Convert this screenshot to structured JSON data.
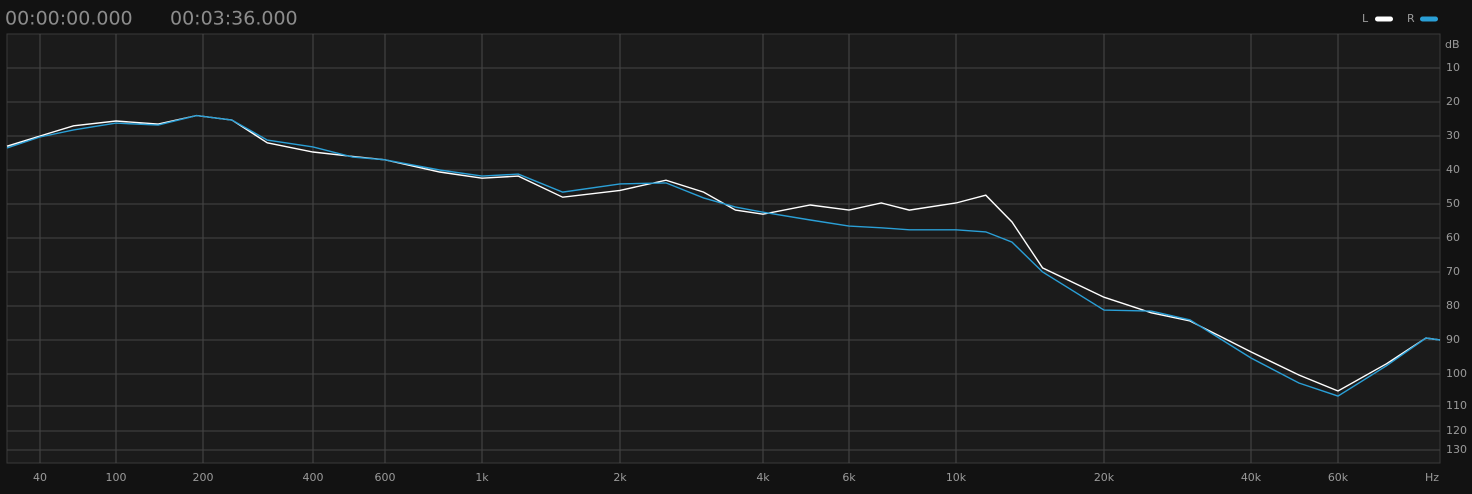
{
  "header": {
    "start": "00:00:00.000",
    "end": "00:03:36.000"
  },
  "chart_data": {
    "type": "line",
    "y_unit": "dB",
    "x_unit": "Hz",
    "x": [
      27,
      40,
      60,
      100,
      140,
      190,
      240,
      300,
      400,
      500,
      600,
      800,
      1000,
      1200,
      1500,
      2000,
      2500,
      3000,
      3500,
      4000,
      5000,
      6000,
      7000,
      8000,
      10000,
      11500,
      13000,
      15000,
      20000,
      25000,
      30000,
      40000,
      50000,
      60000,
      75000,
      90000,
      96000
    ],
    "series": [
      {
        "name": "L",
        "color": "#ffffff",
        "values": [
          33,
          30,
          27,
          25.6,
          26.5,
          24,
          25.3,
          32,
          34.7,
          36,
          37,
          40.6,
          42.4,
          41.8,
          48,
          46,
          43,
          46.5,
          51.8,
          53,
          50.3,
          51.8,
          49.7,
          51.8,
          49.7,
          47.4,
          55.3,
          68.8,
          77.4,
          82,
          84.4,
          93.5,
          100.3,
          105.3,
          97,
          89.4,
          90
        ]
      },
      {
        "name": "R",
        "color": "#2a9fd6",
        "values": [
          33.5,
          30.3,
          28.2,
          26.2,
          26.8,
          24,
          25.3,
          31.2,
          33.2,
          36.2,
          37,
          40,
          41.8,
          41.2,
          46.5,
          44.1,
          43.8,
          48.2,
          50.9,
          52.4,
          54.7,
          56.5,
          57,
          57.6,
          57.6,
          58.2,
          61.2,
          70,
          81.2,
          81.5,
          84.1,
          95.3,
          102.8,
          106.9,
          97.6,
          89.4,
          90
        ]
      }
    ],
    "xlim": [
      27,
      96000
    ],
    "xticks": [
      40,
      100,
      200,
      400,
      600,
      {
        "value": 1000,
        "label": "1k"
      },
      {
        "value": 2000,
        "label": "2k"
      },
      {
        "value": 4000,
        "label": "4k"
      },
      {
        "value": 6000,
        "label": "6k"
      },
      {
        "value": 10000,
        "label": "10k"
      },
      {
        "value": 20000,
        "label": "20k"
      },
      {
        "value": 40000,
        "label": "40k"
      },
      {
        "value": 60000,
        "label": "60k"
      }
    ],
    "ylim": [
      0,
      135
    ],
    "yticks": [
      10,
      20,
      30,
      40,
      50,
      60,
      70,
      80,
      90,
      100,
      110,
      120,
      130
    ],
    "log_x": true,
    "y_inverted": true,
    "grid": true,
    "legend": "top-right"
  }
}
